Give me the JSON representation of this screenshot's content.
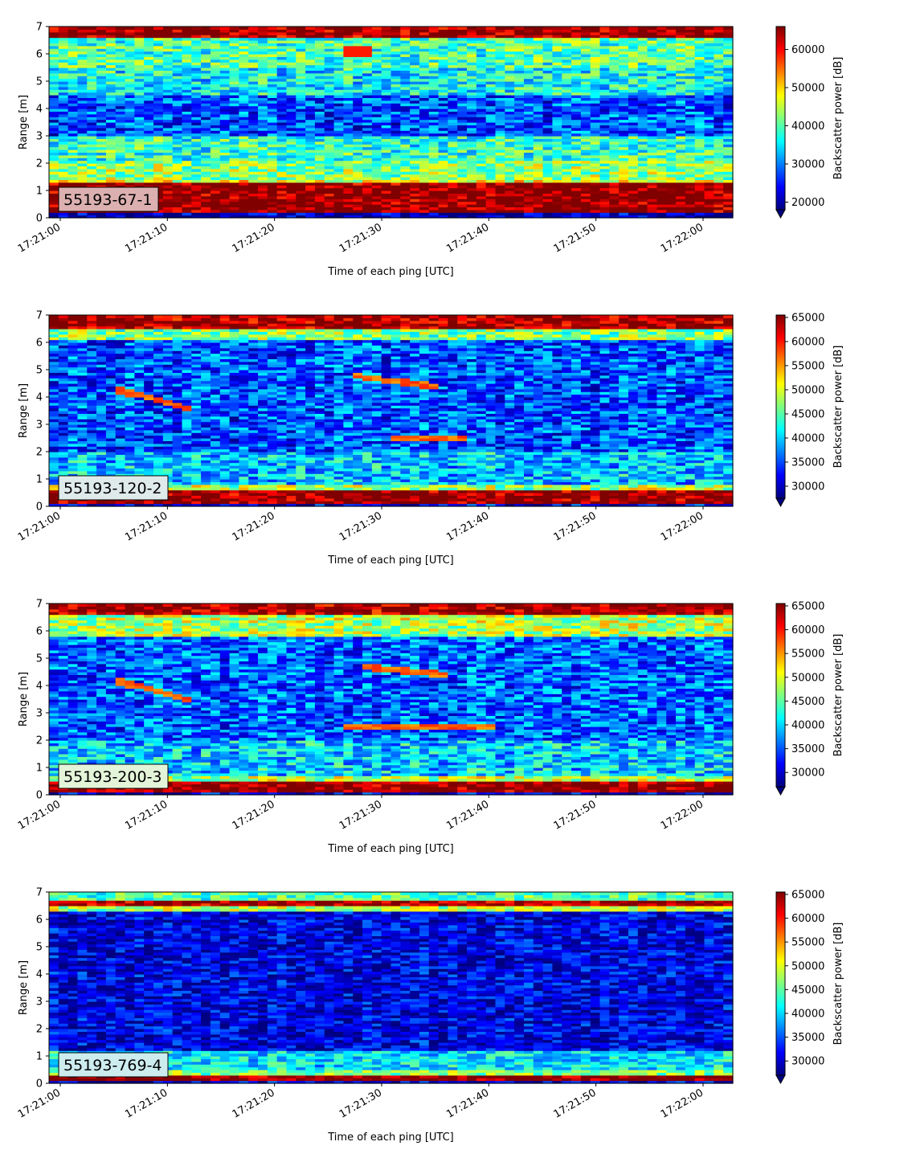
{
  "colorbar_colors": [
    "#00007f",
    "#0000ff",
    "#007fff",
    "#00ffff",
    "#7fff7f",
    "#ffff00",
    "#ff7f00",
    "#ff0000",
    "#7f0000"
  ],
  "chart_data": [
    {
      "type": "heatmap",
      "label": "55193-67-1",
      "label_box_color": "#dcb0b0",
      "xlabel": "Time of each ping [UTC]",
      "ylabel": "Range [m]",
      "colorbar_label": "Backscatter power [dB]",
      "x_ticks": [
        "17:21:00",
        "17:21:10",
        "17:21:20",
        "17:21:30",
        "17:21:40",
        "17:21:50",
        "17:22:00"
      ],
      "y_ticks": [
        "0",
        "1",
        "2",
        "3",
        "4",
        "5",
        "6",
        "7"
      ],
      "ylim": [
        0,
        7
      ],
      "colorbar_ticks": [
        "20000",
        "30000",
        "40000",
        "50000",
        "60000"
      ],
      "clim": [
        18000,
        66000
      ],
      "colormap": "jet",
      "colorbar_extend": "min",
      "features": [
        {
          "range": [
            0.2,
            1.3
          ],
          "level": "max"
        },
        {
          "range": [
            6.6,
            7.0
          ],
          "level": "max"
        },
        {
          "range": [
            1.4,
            2.1
          ],
          "level": "~42000"
        },
        {
          "range": [
            3.0,
            4.5
          ],
          "level": "~25000"
        },
        {
          "time": "17:21:28",
          "range": [
            5.9,
            6.3
          ],
          "level": "~58000"
        }
      ]
    },
    {
      "type": "heatmap",
      "label": "55193-120-2",
      "label_box_color": "#dfeaea",
      "xlabel": "Time of each ping [UTC]",
      "ylabel": "Range [m]",
      "colorbar_label": "Backscatter power [dB]",
      "x_ticks": [
        "17:21:00",
        "17:21:10",
        "17:21:20",
        "17:21:30",
        "17:21:40",
        "17:21:50",
        "17:22:00"
      ],
      "y_ticks": [
        "0",
        "1",
        "2",
        "3",
        "4",
        "5",
        "6",
        "7"
      ],
      "ylim": [
        0,
        7
      ],
      "colorbar_ticks": [
        "30000",
        "35000",
        "40000",
        "45000",
        "50000",
        "55000",
        "60000",
        "65000"
      ],
      "clim": [
        27500,
        65500
      ],
      "colormap": "jet",
      "colorbar_extend": "min",
      "features": [
        {
          "range": [
            0.2,
            0.6
          ],
          "level": "max"
        },
        {
          "range": [
            6.5,
            7.0
          ],
          "level": "max"
        },
        {
          "time_range": [
            "17:21:05",
            "17:21:12"
          ],
          "range": [
            4.3,
            3.6
          ],
          "level": "~57000"
        },
        {
          "time_range": [
            "17:21:27",
            "17:21:35"
          ],
          "range": [
            4.8,
            4.4
          ],
          "level": "~57000"
        },
        {
          "time_range": [
            "17:21:31",
            "17:21:38"
          ],
          "range": [
            2.5,
            2.5
          ],
          "level": "~46000"
        }
      ]
    },
    {
      "type": "heatmap",
      "label": "55193-200-3",
      "label_box_color": "#e3f4d8",
      "xlabel": "Time of each ping [UTC]",
      "ylabel": "Range [m]",
      "colorbar_label": "Backscatter power [dB]",
      "x_ticks": [
        "17:21:00",
        "17:21:10",
        "17:21:20",
        "17:21:30",
        "17:21:40",
        "17:21:50",
        "17:22:00"
      ],
      "y_ticks": [
        "0",
        "1",
        "2",
        "3",
        "4",
        "5",
        "6",
        "7"
      ],
      "ylim": [
        0,
        7
      ],
      "colorbar_ticks": [
        "30000",
        "35000",
        "40000",
        "45000",
        "50000",
        "55000",
        "60000",
        "65000"
      ],
      "clim": [
        27000,
        65500
      ],
      "colormap": "jet",
      "colorbar_extend": "min",
      "features": [
        {
          "range": [
            0.2,
            0.5
          ],
          "level": "max"
        },
        {
          "range": [
            6.6,
            7.0
          ],
          "level": "max"
        },
        {
          "time_range": [
            "17:21:05",
            "17:21:12"
          ],
          "range": [
            4.2,
            3.5
          ],
          "level": "~57000"
        },
        {
          "time_range": [
            "17:21:28",
            "17:21:36"
          ],
          "range": [
            4.7,
            4.4
          ],
          "level": "~50000"
        },
        {
          "time_range": [
            "17:21:26",
            "17:21:41"
          ],
          "range": [
            2.5,
            2.5
          ],
          "level": "~50000"
        }
      ]
    },
    {
      "type": "heatmap",
      "label": "55193-769-4",
      "label_box_color": "#ccecee",
      "xlabel": "Time of each ping [UTC]",
      "ylabel": "Range [m]",
      "colorbar_label": "Backscatter power [dB]",
      "x_ticks": [
        "17:21:00",
        "17:21:10",
        "17:21:20",
        "17:21:30",
        "17:21:40",
        "17:21:50",
        "17:22:00"
      ],
      "y_ticks": [
        "0",
        "1",
        "2",
        "3",
        "4",
        "5",
        "6",
        "7"
      ],
      "ylim": [
        0,
        7
      ],
      "colorbar_ticks": [
        "30000",
        "35000",
        "40000",
        "45000",
        "50000",
        "55000",
        "60000",
        "65000"
      ],
      "clim": [
        27000,
        65500
      ],
      "colormap": "jet",
      "colorbar_extend": "min",
      "features": [
        {
          "range": [
            0.2,
            0.35
          ],
          "level": "max"
        },
        {
          "range": [
            6.5,
            6.75
          ],
          "level": "max"
        },
        {
          "range": [
            1.0,
            6.3
          ],
          "level": "~31000"
        }
      ]
    }
  ]
}
